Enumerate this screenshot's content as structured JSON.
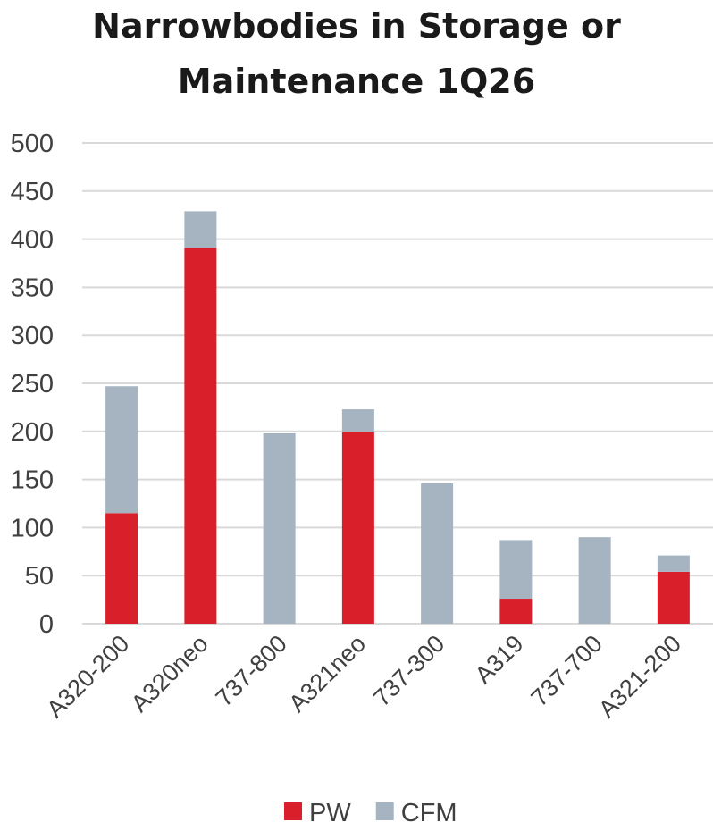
{
  "chart_data": {
    "type": "bar",
    "stacked": true,
    "title": "Narrowbodies in Storage or Maintenance 1Q26",
    "title_lines": [
      "Narrowbodies in Storage or",
      "Maintenance 1Q26"
    ],
    "xlabel": "",
    "ylabel": "",
    "ylim": [
      0,
      500
    ],
    "yticks": [
      0,
      50,
      100,
      150,
      200,
      250,
      300,
      350,
      400,
      450,
      500
    ],
    "grid": true,
    "legend_position": "bottom",
    "categories": [
      "A320-200",
      "A320neo",
      "737-800",
      "A321neo",
      "737-300",
      "A319",
      "737-700",
      "A321-200"
    ],
    "series": [
      {
        "name": "PW",
        "color": "#D9202A",
        "values": [
          115,
          391,
          0,
          199,
          0,
          26,
          0,
          54
        ]
      },
      {
        "name": "CFM",
        "color": "#A5B4C0",
        "values": [
          132,
          38,
          198,
          24,
          146,
          61,
          90,
          17
        ]
      }
    ]
  }
}
